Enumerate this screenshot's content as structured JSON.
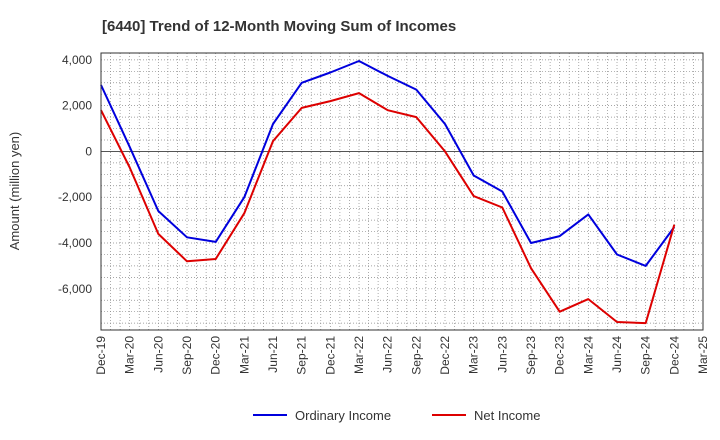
{
  "chart_data": {
    "type": "line",
    "title": "[6440]  Trend of 12-Month Moving Sum of Incomes",
    "xlabel": "",
    "ylabel": "Amount (million yen)",
    "ylim": [
      -7800,
      4300
    ],
    "yticks": [
      4000,
      2000,
      0,
      -2000,
      -4000,
      -6000
    ],
    "ytick_labels": [
      "4,000",
      "2,000",
      "0",
      "-2,000",
      "-4,000",
      "-6,000"
    ],
    "categories": [
      "Dec-19",
      "Mar-20",
      "Jun-20",
      "Sep-20",
      "Dec-20",
      "Mar-21",
      "Jun-21",
      "Sep-21",
      "Dec-21",
      "Mar-22",
      "Jun-22",
      "Sep-22",
      "Dec-22",
      "Mar-23",
      "Jun-23",
      "Sep-23",
      "Dec-23",
      "Mar-24",
      "Jun-24",
      "Sep-24",
      "Dec-24",
      "Mar-25"
    ],
    "grid": true,
    "legend_position": "bottom-center",
    "series": [
      {
        "name": "Ordinary Income",
        "color": "#0000dd",
        "values": [
          2900,
          200,
          -2600,
          -3750,
          -3950,
          -2000,
          1200,
          3000,
          3450,
          3950,
          3300,
          2700,
          1200,
          -1050,
          -1750,
          -4000,
          -3700,
          -2750,
          -4500,
          -5000,
          -3300,
          null
        ]
      },
      {
        "name": "Net Income",
        "color": "#dd0000",
        "values": [
          1800,
          -700,
          -3600,
          -4800,
          -4700,
          -2700,
          450,
          1900,
          2200,
          2550,
          1800,
          1500,
          0,
          -1950,
          -2450,
          -5100,
          -7000,
          -6450,
          -7450,
          -7500,
          -3200,
          null
        ]
      }
    ]
  }
}
